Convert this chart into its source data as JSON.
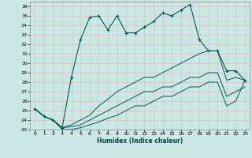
{
  "title": "",
  "xlabel": "Humidex (Indice chaleur)",
  "ylabel": "",
  "bg_color": "#cce8e4",
  "grid_color": "#aad4ce",
  "line_color": "#005858",
  "xlim": [
    -0.5,
    23.5
  ],
  "ylim": [
    23,
    36.5
  ],
  "yticks": [
    23,
    24,
    25,
    26,
    27,
    28,
    29,
    30,
    31,
    32,
    33,
    34,
    35,
    36
  ],
  "xticks": [
    0,
    1,
    2,
    3,
    4,
    5,
    6,
    7,
    8,
    9,
    10,
    11,
    12,
    13,
    14,
    15,
    16,
    17,
    18,
    19,
    20,
    21,
    22,
    23
  ],
  "humidex_y": [
    25.2,
    24.4,
    24.0,
    23.2,
    28.5,
    32.5,
    34.8,
    35.0,
    33.5,
    35.0,
    33.2,
    33.2,
    33.8,
    34.4,
    35.3,
    35.0,
    35.6,
    36.2,
    32.5,
    31.3,
    31.3,
    29.2,
    29.2,
    28.2
  ],
  "line2_y": [
    25.2,
    24.4,
    24.0,
    23.2,
    23.5,
    24.0,
    24.5,
    25.5,
    26.2,
    27.0,
    27.5,
    28.0,
    28.5,
    28.5,
    29.0,
    29.5,
    30.0,
    30.5,
    31.0,
    31.3,
    31.3,
    28.2,
    28.5,
    28.2
  ],
  "line3_y": [
    25.2,
    24.4,
    24.0,
    23.2,
    23.3,
    23.5,
    24.0,
    24.5,
    25.0,
    25.5,
    26.0,
    26.5,
    27.0,
    27.0,
    27.5,
    27.5,
    28.0,
    28.5,
    28.5,
    29.0,
    29.0,
    26.5,
    27.0,
    27.5
  ],
  "line4_y": [
    25.2,
    24.4,
    24.0,
    23.0,
    23.0,
    23.2,
    23.5,
    23.8,
    24.2,
    24.5,
    25.0,
    25.5,
    25.5,
    26.0,
    26.5,
    26.5,
    27.0,
    27.5,
    27.5,
    28.0,
    28.0,
    25.5,
    26.0,
    28.2
  ]
}
